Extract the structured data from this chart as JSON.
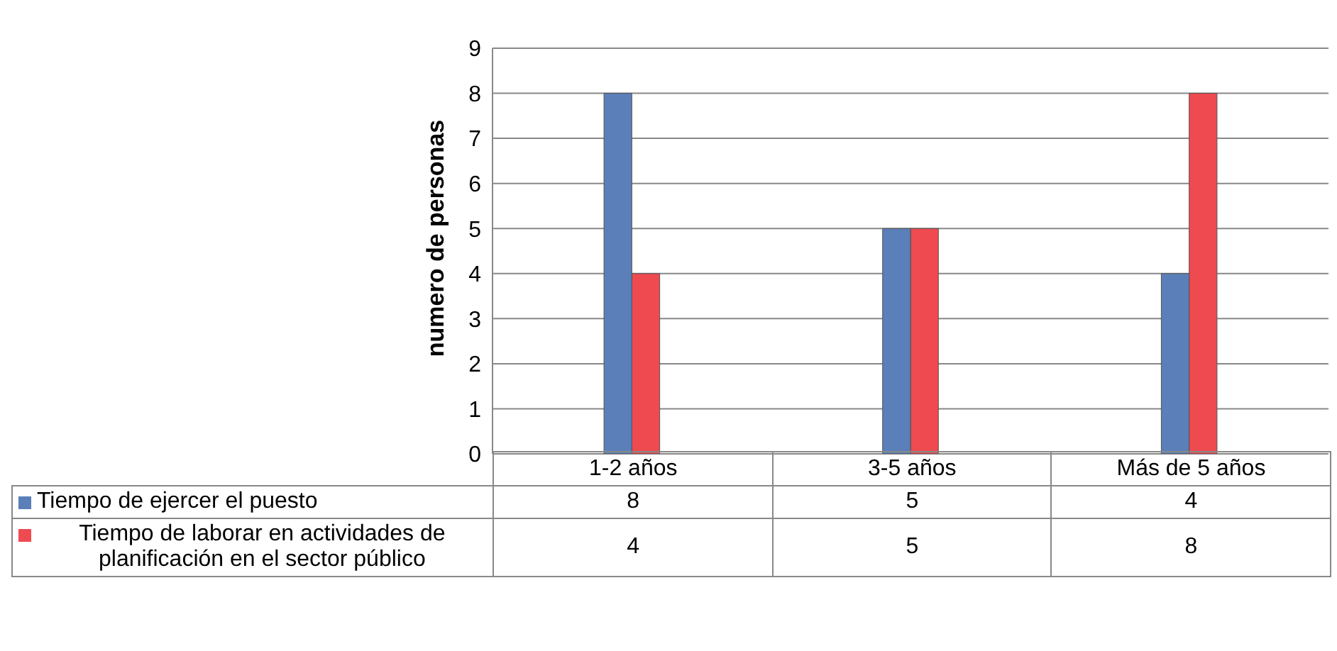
{
  "chart_data": {
    "type": "bar",
    "ylabel": "numero de personas",
    "categories": [
      "1-2 años",
      "3-5 años",
      "Más de 5 años"
    ],
    "series": [
      {
        "name": "Tiempo de ejercer el puesto",
        "color": "#5a7fb9",
        "values": [
          8,
          5,
          4
        ]
      },
      {
        "name": "Tiempo de laborar en actividades de planificación en el sector público",
        "color": "#ee4a50",
        "values": [
          4,
          5,
          8
        ]
      }
    ],
    "ylim": [
      0,
      9
    ],
    "yticks": [
      0,
      1,
      2,
      3,
      4,
      5,
      6,
      7,
      8,
      9
    ],
    "grid": "y",
    "legend": "bottom",
    "data_labels": true
  }
}
